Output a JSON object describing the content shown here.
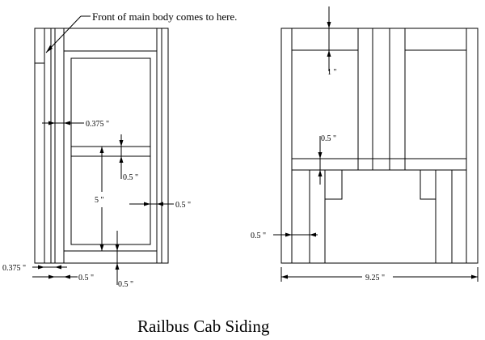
{
  "note": "Front of main body comes to here.",
  "title": "Railbus Cab Siding",
  "left_view": {
    "dims": {
      "d0375_mid": "0.375 \"",
      "d05_rail": "0.5 \"",
      "d5": "5 \"",
      "d05_right": "0.5 \"",
      "d0375_bot": "0.375 \"",
      "d05_bot": "0.5 \"",
      "d05_bot2": "0.5 \""
    }
  },
  "right_view": {
    "dims": {
      "d1": "1 \"",
      "d05_mid": "0.5 \"",
      "d05_left": "0.5 \"",
      "d925": "9.25 \""
    }
  }
}
